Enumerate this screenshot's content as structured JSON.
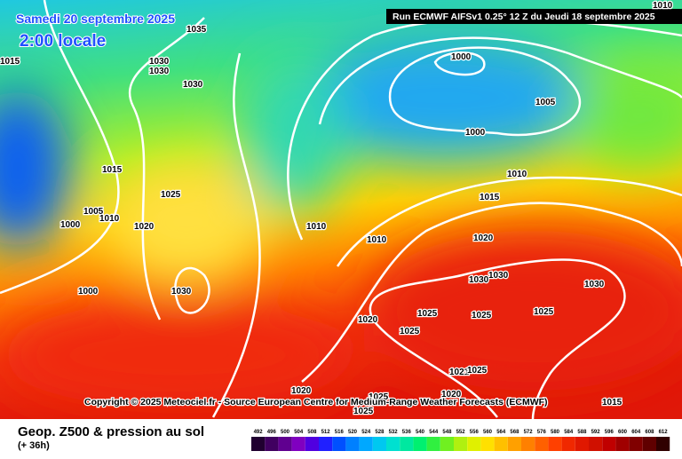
{
  "header": {
    "date": "Samedi 20 septembre 2025",
    "time": "2:00 locale",
    "run": "Run ECMWF AIFSv1 0.25° 12 Z du Jeudi 18 septembre 2025"
  },
  "isobars": {
    "labels": [
      "1035",
      "1015",
      "1030",
      "1030",
      "1030",
      "1000",
      "1010",
      "1005",
      "1000",
      "1015",
      "1010",
      "1025",
      "1015",
      "1005",
      "1010",
      "1000",
      "1020",
      "1010",
      "1020",
      "1010",
      "1030",
      "1030",
      "1000",
      "1030",
      "1030",
      "1025",
      "1025",
      "1025",
      "1020",
      "1025",
      "1021",
      "1025",
      "1020",
      "1020",
      "1025",
      "1025",
      "1015"
    ]
  },
  "footer": {
    "copyright": "Copyright © 2025 Meteociel.fr - Source European Centre for Medium-Range Weather Forecasts (ECMWF)",
    "title": "Geop. Z500 & pression au sol",
    "lead": "(+ 36h)"
  },
  "legend": {
    "levels": [
      492,
      496,
      500,
      504,
      508,
      512,
      516,
      520,
      524,
      528,
      532,
      536,
      540,
      544,
      548,
      552,
      556,
      560,
      564,
      568,
      572,
      576,
      580,
      584,
      588,
      592,
      596,
      600,
      604,
      608,
      612
    ]
  }
}
